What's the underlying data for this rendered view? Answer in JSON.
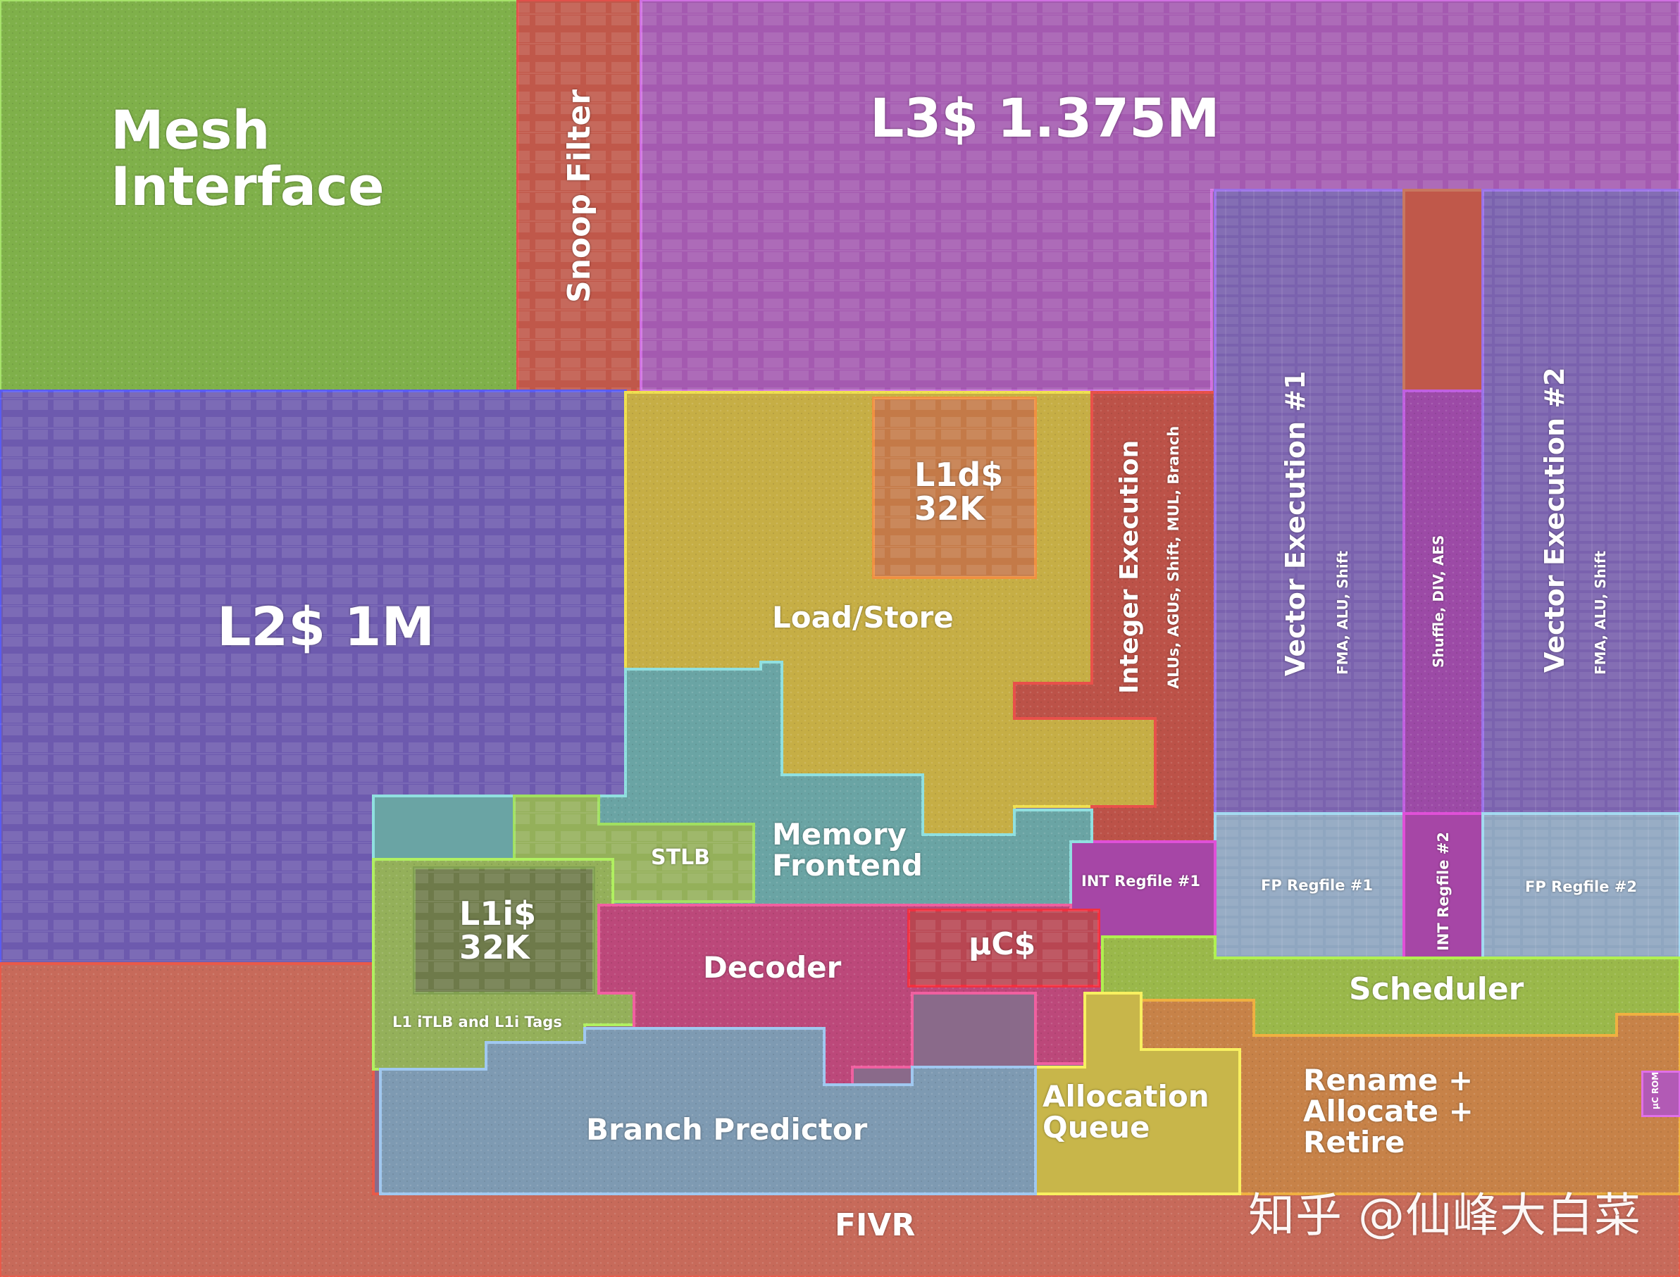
{
  "labels": {
    "mesh": "Mesh\nInterface",
    "snoop": "Snoop Filter",
    "l3": "L3$ 1.375M",
    "l2": "L2$ 1M",
    "l1d": "L1d$\n32K",
    "load_store": "Load/Store",
    "int_exec": "Integer Execution",
    "int_exec_sub": "ALUs, AGUs, Shift, MUL, Branch",
    "vec1": "Vector Execution #1",
    "vec1_sub": "FMA, ALU, Shift",
    "shuffle": "Shuffle, DIV, AES",
    "vec2": "Vector Execution #2",
    "vec2_sub": "FMA, ALU, Shift",
    "stlb": "STLB",
    "mem_frontend": "Memory\nFrontend",
    "int_regfile1": "INT Regfile #1",
    "fp_regfile1": "FP Regfile #1",
    "int_regfile2": "INT Regfile #2",
    "fp_regfile2": "FP Regfile #2",
    "l1i": "L1i$\n32K",
    "decoder": "Decoder",
    "uc": "µC$",
    "scheduler": "Scheduler",
    "l1itlb": "L1 iTLB and L1i Tags",
    "rename": "Rename +\nAllocate +\nRetire",
    "alloc_queue": "Allocation\nQueue",
    "branch": "Branch Predictor",
    "fivr": "FIVR",
    "ucrom": "µC ROM"
  },
  "watermark": "知乎 @仙峰大白菜",
  "colors": {
    "mesh": "#7fb04a",
    "snoop": "#c0584a",
    "l3": "#a45ab0",
    "l2": "#6d5aae",
    "load_store": "#c6ae45",
    "l1d": "#c47a48",
    "int_exec": "#bc5248",
    "vector": "#7a62ae",
    "shuffle": "#9c4aa6",
    "memory_frontend": "#6aa4a4",
    "regfile": "#8fa6c0",
    "int_regfile": "#a646a6",
    "l1i_area": "#94b05a",
    "l1i": "#6e7a4a",
    "decoder": "#bc487a",
    "uc": "#b84652",
    "scheduler": "#9ab84a",
    "rename": "#c78248",
    "alloc": "#c8b64a",
    "branch": "#7e9ab2",
    "fivr": "#c76a5a"
  }
}
